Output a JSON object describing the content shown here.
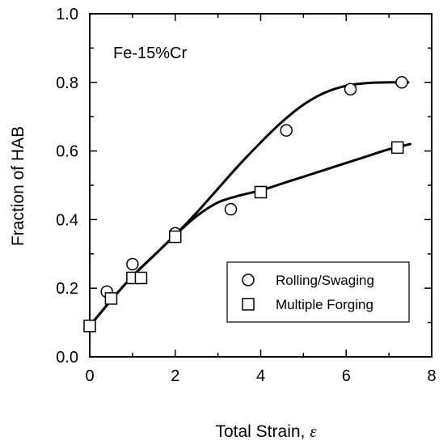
{
  "chart_data": {
    "type": "scatter",
    "annotation": "Fe-15%Cr",
    "xlabel": "Total Strain, ",
    "xlabel_symbol": "ε",
    "ylabel": "Fraction of HAB",
    "xlim": [
      0,
      8
    ],
    "ylim": [
      0.0,
      1.0
    ],
    "xticks": [
      "0",
      "2",
      "4",
      "6",
      "8"
    ],
    "yticks": [
      "0.0",
      "0.2",
      "0.4",
      "0.6",
      "0.8",
      "1.0"
    ],
    "grid": false,
    "legend_position": "lower-right",
    "series": [
      {
        "name": "Rolling/Swaging",
        "marker": "circle",
        "points": [
          [
            0,
            0.09
          ],
          [
            0.4,
            0.19
          ],
          [
            1.0,
            0.27
          ],
          [
            2.0,
            0.36
          ],
          [
            3.3,
            0.43
          ],
          [
            4.6,
            0.66
          ],
          [
            6.1,
            0.78
          ],
          [
            7.3,
            0.8
          ]
        ],
        "fit": [
          [
            0,
            0.09
          ],
          [
            0.5,
            0.165
          ],
          [
            1.0,
            0.235
          ],
          [
            1.5,
            0.295
          ],
          [
            2.0,
            0.355
          ],
          [
            2.5,
            0.42
          ],
          [
            3.0,
            0.49
          ],
          [
            3.5,
            0.56
          ],
          [
            4.0,
            0.625
          ],
          [
            4.5,
            0.685
          ],
          [
            5.0,
            0.735
          ],
          [
            5.5,
            0.77
          ],
          [
            6.0,
            0.79
          ],
          [
            6.5,
            0.798
          ],
          [
            7.0,
            0.8
          ],
          [
            7.45,
            0.8
          ]
        ]
      },
      {
        "name": "Multiple Forging",
        "marker": "square",
        "points": [
          [
            0,
            0.09
          ],
          [
            0.5,
            0.17
          ],
          [
            1.0,
            0.23
          ],
          [
            1.2,
            0.23
          ],
          [
            2.0,
            0.35
          ],
          [
            4.0,
            0.48
          ],
          [
            7.2,
            0.61
          ]
        ],
        "fit": [
          [
            0,
            0.09
          ],
          [
            0.5,
            0.165
          ],
          [
            1.0,
            0.235
          ],
          [
            1.5,
            0.295
          ],
          [
            2.0,
            0.355
          ],
          [
            2.5,
            0.41
          ],
          [
            3.0,
            0.45
          ],
          [
            3.5,
            0.47
          ],
          [
            4.0,
            0.485
          ],
          [
            4.5,
            0.505
          ],
          [
            5.0,
            0.525
          ],
          [
            5.5,
            0.545
          ],
          [
            6.0,
            0.565
          ],
          [
            6.5,
            0.585
          ],
          [
            7.0,
            0.605
          ],
          [
            7.5,
            0.62
          ]
        ]
      }
    ]
  }
}
